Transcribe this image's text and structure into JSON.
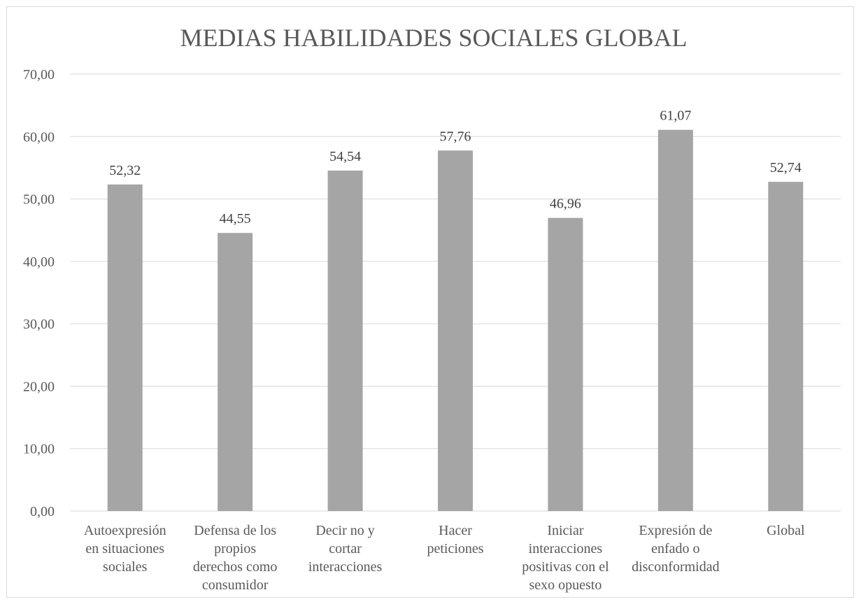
{
  "chart_data": {
    "type": "bar",
    "title": "MEDIAS HABILIDADES SOCIALES GLOBAL",
    "categories": [
      [
        "Autoexpresión",
        "en situaciones",
        "sociales"
      ],
      [
        "Defensa de los",
        "propios",
        "derechos como",
        "consumidor"
      ],
      [
        "Decir no y",
        "cortar",
        "interacciones"
      ],
      [
        "Hacer",
        "peticiones"
      ],
      [
        "Iniciar",
        "interacciones",
        "positivas con el",
        "sexo opuesto"
      ],
      [
        "Expresión de",
        "enfado o",
        "disconformidad"
      ],
      [
        "Global"
      ]
    ],
    "values": [
      52.32,
      44.55,
      54.54,
      57.76,
      46.96,
      61.07,
      52.74
    ],
    "data_labels": [
      "52,32",
      "44,55",
      "54,54",
      "57,76",
      "46,96",
      "61,07",
      "52,74"
    ],
    "y_ticks": [
      "0,00",
      "10,00",
      "20,00",
      "30,00",
      "40,00",
      "50,00",
      "60,00",
      "70,00"
    ],
    "ylim": [
      0,
      70
    ],
    "grid": true,
    "legend": "none",
    "colors": {
      "bar": "#a5a5a5",
      "grid": "#d9d9d9",
      "text": "#595959"
    }
  }
}
